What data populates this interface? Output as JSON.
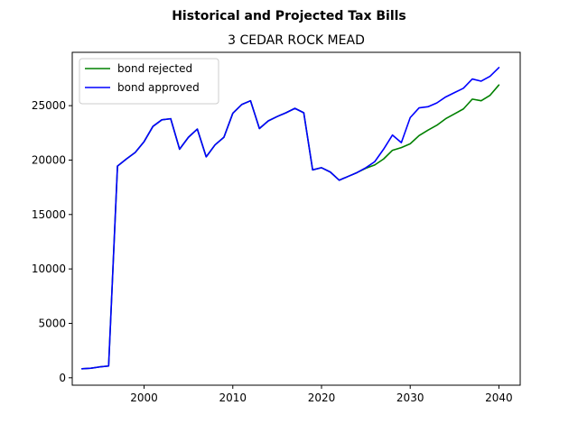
{
  "chart_data": {
    "type": "line",
    "suptitle": "Historical and Projected Tax Bills",
    "title": "3 CEDAR ROCK MEAD",
    "xlabel": "",
    "ylabel": "",
    "xlim": [
      1991.9,
      2042.4
    ],
    "ylim": [
      -680,
      29900
    ],
    "x_ticks": [
      "2000",
      "2010",
      "2020",
      "2030",
      "2040"
    ],
    "y_ticks": [
      "0",
      "5000",
      "10000",
      "15000",
      "20000",
      "25000"
    ],
    "grid": false,
    "legend_position": "upper left",
    "series": [
      {
        "name": "bond rejected",
        "color": "#008000",
        "points": [
          [
            1993,
            830
          ],
          [
            1994,
            880
          ],
          [
            1995,
            1000
          ],
          [
            1996,
            1080
          ],
          [
            1997,
            19450
          ],
          [
            1998,
            20100
          ],
          [
            1999,
            20700
          ],
          [
            2000,
            21700
          ],
          [
            2001,
            23100
          ],
          [
            2002,
            23700
          ],
          [
            2003,
            23800
          ],
          [
            2004,
            21000
          ],
          [
            2005,
            22100
          ],
          [
            2006,
            22850
          ],
          [
            2007,
            20300
          ],
          [
            2008,
            21400
          ],
          [
            2009,
            22100
          ],
          [
            2010,
            24300
          ],
          [
            2011,
            25100
          ],
          [
            2012,
            25450
          ],
          [
            2013,
            22900
          ],
          [
            2014,
            23600
          ],
          [
            2015,
            24000
          ],
          [
            2016,
            24350
          ],
          [
            2017,
            24750
          ],
          [
            2018,
            24350
          ],
          [
            2019,
            19100
          ],
          [
            2020,
            19300
          ],
          [
            2021,
            18900
          ],
          [
            2022,
            18150
          ],
          [
            2023,
            18500
          ],
          [
            2024,
            18850
          ],
          [
            2025,
            19250
          ],
          [
            2026,
            19550
          ],
          [
            2027,
            20100
          ],
          [
            2028,
            20900
          ],
          [
            2029,
            21150
          ],
          [
            2030,
            21500
          ],
          [
            2031,
            22250
          ],
          [
            2032,
            22750
          ],
          [
            2033,
            23200
          ],
          [
            2034,
            23800
          ],
          [
            2035,
            24250
          ],
          [
            2036,
            24700
          ],
          [
            2037,
            25600
          ],
          [
            2038,
            25450
          ],
          [
            2039,
            25950
          ],
          [
            2040,
            26900
          ]
        ]
      },
      {
        "name": "bond approved",
        "color": "#0000ff",
        "points": [
          [
            1993,
            830
          ],
          [
            1994,
            880
          ],
          [
            1995,
            1000
          ],
          [
            1996,
            1080
          ],
          [
            1997,
            19450
          ],
          [
            1998,
            20100
          ],
          [
            1999,
            20700
          ],
          [
            2000,
            21700
          ],
          [
            2001,
            23100
          ],
          [
            2002,
            23700
          ],
          [
            2003,
            23800
          ],
          [
            2004,
            21000
          ],
          [
            2005,
            22100
          ],
          [
            2006,
            22850
          ],
          [
            2007,
            20300
          ],
          [
            2008,
            21400
          ],
          [
            2009,
            22100
          ],
          [
            2010,
            24300
          ],
          [
            2011,
            25100
          ],
          [
            2012,
            25450
          ],
          [
            2013,
            22900
          ],
          [
            2014,
            23600
          ],
          [
            2015,
            24000
          ],
          [
            2016,
            24350
          ],
          [
            2017,
            24750
          ],
          [
            2018,
            24350
          ],
          [
            2019,
            19100
          ],
          [
            2020,
            19300
          ],
          [
            2021,
            18900
          ],
          [
            2022,
            18150
          ],
          [
            2023,
            18500
          ],
          [
            2024,
            18850
          ],
          [
            2025,
            19300
          ],
          [
            2026,
            19850
          ],
          [
            2027,
            21000
          ],
          [
            2028,
            22300
          ],
          [
            2029,
            21600
          ],
          [
            2030,
            23900
          ],
          [
            2031,
            24800
          ],
          [
            2032,
            24900
          ],
          [
            2033,
            25250
          ],
          [
            2034,
            25800
          ],
          [
            2035,
            26200
          ],
          [
            2036,
            26600
          ],
          [
            2037,
            27450
          ],
          [
            2038,
            27250
          ],
          [
            2039,
            27700
          ],
          [
            2040,
            28500
          ]
        ]
      }
    ]
  }
}
